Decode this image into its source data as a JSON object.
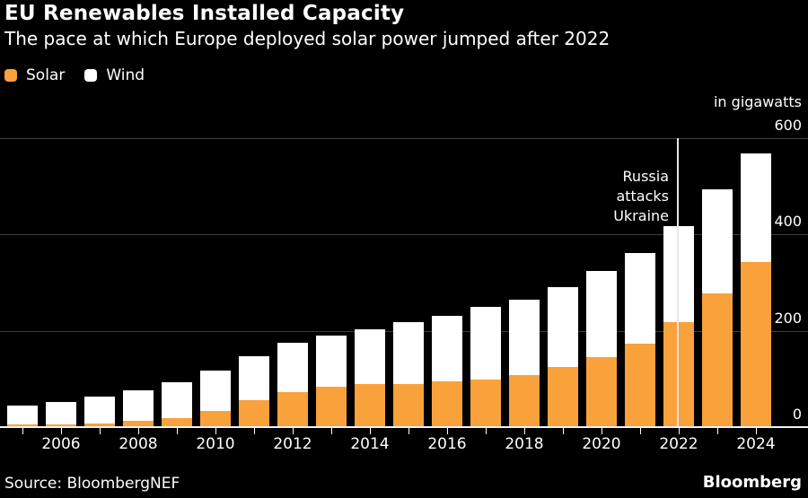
{
  "header": {
    "title": "EU Renewables Installed Capacity",
    "subtitle": "The pace at which Europe deployed solar power jumped after 2022"
  },
  "legend": [
    {
      "label": "Solar",
      "color": "#F9A13B"
    },
    {
      "label": "Wind",
      "color": "#FFFFFF"
    }
  ],
  "colors": {
    "background": "#000000",
    "solar": "#F9A13B",
    "wind": "#FFFFFF",
    "gridline": "#3D3D3D",
    "baseline": "#F2F2F2",
    "text": "#FFFFFF",
    "event_line": "#E8E8E8"
  },
  "chart_data": {
    "type": "bar",
    "stacked": true,
    "title": "EU Renewables Installed Capacity",
    "subtitle": "The pace at which Europe deployed solar power jumped after 2022",
    "unit_label": "in gigawatts",
    "grid": "horizontal",
    "legend_position": "top-left",
    "x": [
      2005,
      2006,
      2007,
      2008,
      2009,
      2010,
      2011,
      2012,
      2013,
      2014,
      2015,
      2016,
      2017,
      2018,
      2019,
      2020,
      2021,
      2022,
      2023,
      2024
    ],
    "x_tick_labels": [
      "2006",
      "2008",
      "2010",
      "2012",
      "2014",
      "2016",
      "2018",
      "2020",
      "2022",
      "2024"
    ],
    "series": [
      {
        "name": "Solar",
        "color": "#F9A13B",
        "values": [
          3,
          4,
          6,
          11,
          17,
          31,
          54,
          71,
          81,
          87,
          88,
          93,
          97,
          106,
          123,
          143,
          172,
          216,
          276,
          341
        ]
      },
      {
        "name": "Wind",
        "color": "#FFFFFF",
        "values": [
          40,
          47,
          55,
          63,
          74,
          85,
          91,
          102,
          107,
          114,
          127,
          136,
          150,
          156,
          165,
          178,
          188,
          199,
          216,
          225
        ]
      }
    ],
    "yticks": [
      600,
      400,
      200,
      0
    ],
    "ylim": [
      0,
      600
    ],
    "annotation": {
      "lines": [
        "Russia",
        "attacks",
        "Ukraine"
      ],
      "year": 2022
    }
  },
  "footer": {
    "source": "Source: BloombergNEF",
    "brand": "Bloomberg"
  }
}
